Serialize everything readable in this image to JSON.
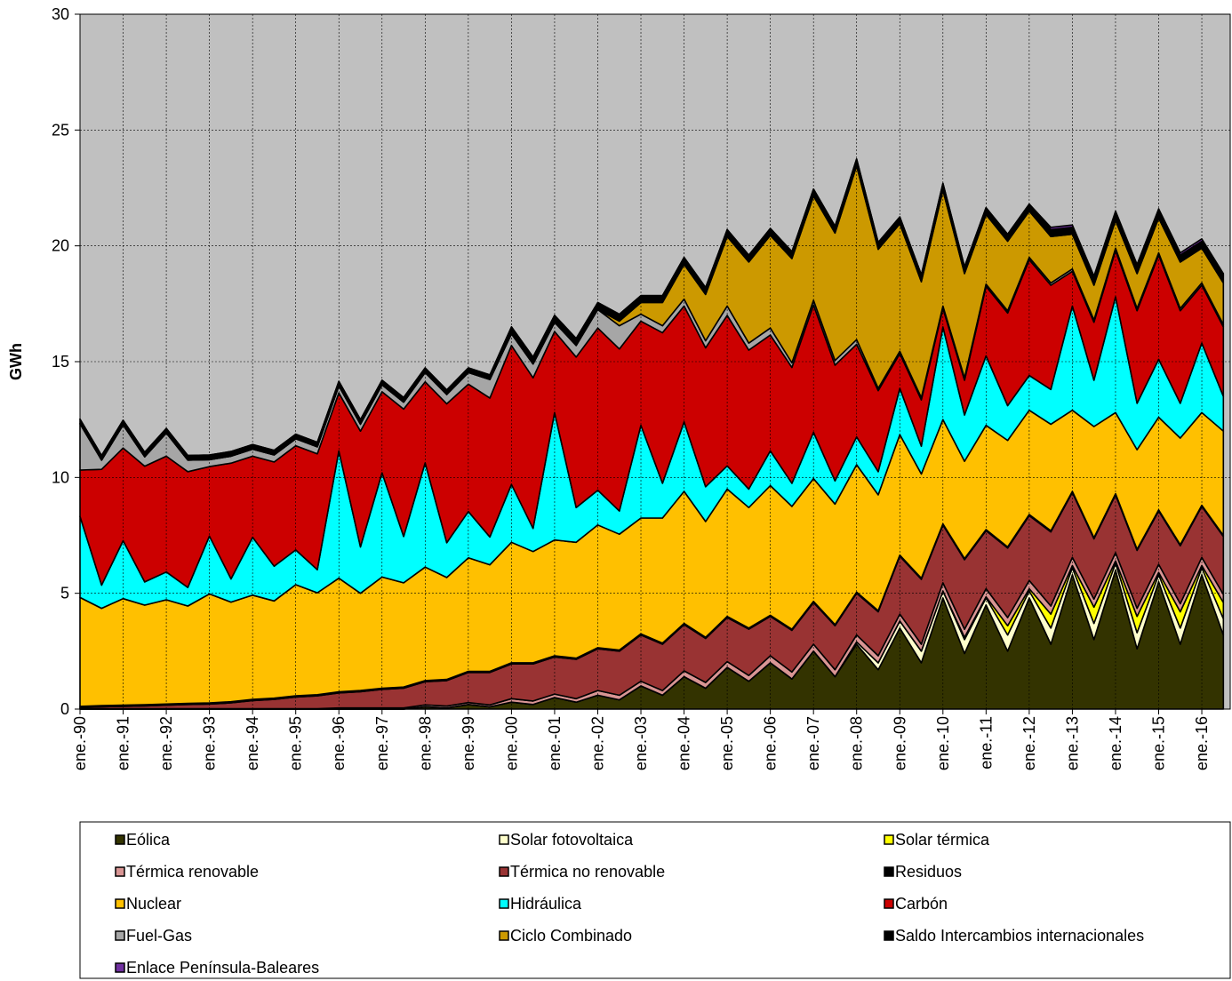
{
  "chart_data": {
    "type": "stacked_area",
    "ylabel": "GWh",
    "ylim": [
      0,
      30
    ],
    "yticks": [
      0,
      5,
      10,
      15,
      20,
      25,
      30
    ],
    "grid": true,
    "categories": [
      "ene.-90",
      null,
      "ene.-91",
      null,
      "ene.-92",
      null,
      "ene.-93",
      null,
      "ene.-94",
      null,
      "ene.-95",
      null,
      "ene.-96",
      null,
      "ene.-97",
      null,
      "ene.-98",
      null,
      "ene.-99",
      null,
      "ene.-00",
      null,
      "ene.-01",
      null,
      "ene.-02",
      null,
      "ene.-03",
      null,
      "ene.-04",
      null,
      "ene.-05",
      null,
      "ene.-06",
      null,
      "ene.-07",
      null,
      "ene.-08",
      null,
      "ene.-09",
      null,
      "ene.-10",
      null,
      "ene.-11",
      null,
      "ene.-12",
      null,
      "ene.-13",
      null,
      "ene.-14",
      null,
      "ene.-15",
      null,
      "ene.-16",
      null
    ],
    "series": [
      {
        "name": "Eólica",
        "color": "#333300",
        "values": [
          0,
          0,
          0,
          0,
          0,
          0,
          0,
          0,
          0,
          0,
          0,
          0,
          0,
          0,
          0,
          0,
          0.1,
          0.05,
          0.2,
          0.1,
          0.3,
          0.2,
          0.5,
          0.3,
          0.6,
          0.4,
          1.0,
          0.6,
          1.4,
          0.9,
          1.8,
          1.2,
          2.0,
          1.3,
          2.5,
          1.4,
          2.8,
          1.7,
          3.5,
          2.0,
          4.8,
          2.4,
          4.5,
          2.5,
          4.8,
          2.8,
          5.8,
          3.0,
          6.0,
          2.6,
          5.5,
          2.8,
          5.8,
          3.2
        ]
      },
      {
        "name": "Solar fotovoltaica",
        "color": "#ffffcc",
        "values": [
          0,
          0,
          0,
          0,
          0,
          0,
          0,
          0,
          0,
          0,
          0,
          0,
          0,
          0,
          0,
          0,
          0,
          0,
          0,
          0,
          0,
          0,
          0,
          0,
          0,
          0,
          0,
          0,
          0,
          0,
          0,
          0,
          0,
          0,
          0,
          0,
          0.1,
          0.3,
          0.3,
          0.5,
          0.3,
          0.6,
          0.3,
          0.7,
          0.3,
          0.7,
          0.3,
          0.7,
          0.3,
          0.7,
          0.3,
          0.7,
          0.3,
          0.7
        ]
      },
      {
        "name": "Solar térmica",
        "color": "#ffff00",
        "values": [
          0,
          0,
          0,
          0,
          0,
          0,
          0,
          0,
          0,
          0,
          0,
          0,
          0,
          0,
          0,
          0,
          0,
          0,
          0,
          0,
          0,
          0,
          0,
          0,
          0,
          0,
          0,
          0,
          0,
          0,
          0,
          0,
          0,
          0,
          0,
          0,
          0,
          0,
          0,
          0,
          0,
          0.1,
          0.05,
          0.4,
          0.1,
          0.6,
          0.1,
          0.7,
          0.1,
          0.7,
          0.1,
          0.7,
          0.1,
          0.7
        ]
      },
      {
        "name": "Térmica renovable",
        "color": "#d99594",
        "values": [
          0.02,
          0.02,
          0.02,
          0.02,
          0.02,
          0.02,
          0.02,
          0.02,
          0.02,
          0.02,
          0.02,
          0.02,
          0.05,
          0.05,
          0.05,
          0.05,
          0.08,
          0.08,
          0.08,
          0.08,
          0.15,
          0.15,
          0.15,
          0.15,
          0.2,
          0.2,
          0.2,
          0.2,
          0.25,
          0.25,
          0.25,
          0.25,
          0.3,
          0.3,
          0.3,
          0.3,
          0.3,
          0.3,
          0.3,
          0.3,
          0.35,
          0.35,
          0.35,
          0.35,
          0.35,
          0.35,
          0.35,
          0.35,
          0.35,
          0.35,
          0.35,
          0.35,
          0.35,
          0.35
        ]
      },
      {
        "name": "Térmica no renovable",
        "color": "#993333",
        "values": [
          0.05,
          0.08,
          0.1,
          0.12,
          0.15,
          0.18,
          0.2,
          0.25,
          0.35,
          0.4,
          0.5,
          0.55,
          0.65,
          0.7,
          0.8,
          0.85,
          1.0,
          1.1,
          1.3,
          1.4,
          1.5,
          1.6,
          1.6,
          1.7,
          1.8,
          1.9,
          2.0,
          2.0,
          2.0,
          1.9,
          1.9,
          2.0,
          1.7,
          1.8,
          1.8,
          1.9,
          1.8,
          1.9,
          2.5,
          2.8,
          2.5,
          3.0,
          2.5,
          3.0,
          2.8,
          3.2,
          2.8,
          2.6,
          2.5,
          2.5,
          2.3,
          2.5,
          2.2,
          2.5
        ]
      },
      {
        "name": "Residuos",
        "color": "#000000",
        "values": [
          0.05,
          0.05,
          0.05,
          0.05,
          0.05,
          0.05,
          0.05,
          0.05,
          0.05,
          0.05,
          0.05,
          0.05,
          0.05,
          0.05,
          0.05,
          0.05,
          0.05,
          0.05,
          0.05,
          0.05,
          0.05,
          0.05,
          0.05,
          0.05,
          0.05,
          0.05,
          0.05,
          0.05,
          0.05,
          0.05,
          0.05,
          0.05,
          0.05,
          0.05,
          0.05,
          0.05,
          0.05,
          0.05,
          0.05,
          0.05,
          0.05,
          0.05,
          0.05,
          0.05,
          0.05,
          0.05,
          0.05,
          0.05,
          0.05,
          0.05,
          0.05,
          0.05,
          0.05,
          0.05
        ]
      },
      {
        "name": "Nuclear",
        "color": "#ffc000",
        "values": [
          4.7,
          4.2,
          4.6,
          4.3,
          4.5,
          4.2,
          4.7,
          4.3,
          4.5,
          4.2,
          4.8,
          4.4,
          4.9,
          4.2,
          4.8,
          4.5,
          4.9,
          4.4,
          4.9,
          4.6,
          5.2,
          4.8,
          5.0,
          5.0,
          5.3,
          5.0,
          5.0,
          5.4,
          5.7,
          5.0,
          5.5,
          5.2,
          5.6,
          5.3,
          5.3,
          5.2,
          5.5,
          5.0,
          5.2,
          4.5,
          4.5,
          4.2,
          4.5,
          4.6,
          4.5,
          4.6,
          3.5,
          4.8,
          3.5,
          4.3,
          4.0,
          4.6,
          4.0,
          4.5
        ]
      },
      {
        "name": "Hidráulica",
        "color": "#00ffff",
        "values": [
          3.5,
          1.0,
          2.5,
          1.0,
          1.2,
          0.8,
          2.5,
          1.0,
          2.5,
          1.5,
          1.5,
          1.0,
          5.5,
          2.0,
          4.5,
          2.0,
          4.5,
          1.5,
          2.0,
          1.2,
          2.5,
          1.0,
          5.5,
          1.5,
          1.5,
          1.0,
          4.0,
          1.5,
          3.0,
          1.5,
          1.0,
          0.8,
          1.5,
          1.0,
          2.0,
          1.0,
          1.2,
          1.0,
          2.0,
          1.2,
          4.0,
          2.0,
          3.0,
          1.5,
          1.5,
          1.5,
          4.5,
          2.0,
          5.0,
          2.0,
          2.5,
          1.5,
          3.0,
          1.5
        ]
      },
      {
        "name": "Carbón",
        "color": "#cc0000",
        "values": [
          2.0,
          5.0,
          4.0,
          5.0,
          5.0,
          5.0,
          3.0,
          5.0,
          3.5,
          4.5,
          4.5,
          5.0,
          2.5,
          5.0,
          3.5,
          5.5,
          3.5,
          6.0,
          5.5,
          6.0,
          6.0,
          6.5,
          3.5,
          6.5,
          7.0,
          7.0,
          4.5,
          6.5,
          5.0,
          6.0,
          6.5,
          6.0,
          5.0,
          5.0,
          5.5,
          5.0,
          4.0,
          3.5,
          1.5,
          2.0,
          0.8,
          1.5,
          3.0,
          4.0,
          5.0,
          4.5,
          1.5,
          2.5,
          2.0,
          4.0,
          4.5,
          4.0,
          2.5,
          3.0
        ]
      },
      {
        "name": "Fuel-Gas",
        "color": "#a6a6a6",
        "values": [
          2.0,
          0.4,
          1.0,
          0.4,
          1.0,
          0.5,
          0.3,
          0.3,
          0.3,
          0.3,
          0.3,
          0.3,
          0.3,
          0.3,
          0.3,
          0.3,
          0.4,
          0.4,
          0.5,
          0.8,
          0.5,
          0.6,
          0.4,
          0.5,
          0.8,
          1.0,
          0.3,
          0.3,
          0.3,
          0.3,
          0.4,
          0.3,
          0.3,
          0.2,
          0.2,
          0.2,
          0.2,
          0.1,
          0.1,
          0.1,
          0.1,
          0.1,
          0.1,
          0.1,
          0.1,
          0.1,
          0.1,
          0.1,
          0.1,
          0.1,
          0.1,
          0.1,
          0.1,
          0.1
        ]
      },
      {
        "name": "Ciclo Combinado",
        "color": "#cc9900",
        "values": [
          0,
          0,
          0,
          0,
          0,
          0,
          0,
          0,
          0,
          0,
          0,
          0,
          0,
          0,
          0,
          0,
          0,
          0,
          0,
          0,
          0,
          0,
          0,
          0,
          0,
          0.2,
          0.5,
          1.0,
          1.5,
          2.0,
          3.0,
          3.5,
          4.0,
          4.5,
          4.5,
          5.5,
          7.5,
          6.0,
          5.5,
          5.0,
          5.0,
          4.5,
          3.0,
          3.0,
          2.0,
          2.0,
          1.5,
          1.5,
          1.2,
          1.5,
          1.5,
          2.0,
          1.5,
          1.8
        ]
      },
      {
        "name": "Saldo Intercambios internacionales",
        "color": "#000000",
        "values": [
          0.2,
          0.2,
          0.2,
          0.2,
          0.2,
          0.2,
          0.2,
          0.2,
          0.2,
          0.2,
          0.2,
          0.2,
          0.2,
          0.2,
          0.2,
          0.2,
          0.2,
          0.2,
          0.2,
          0.2,
          0.3,
          0.3,
          0.3,
          0.3,
          0.3,
          0.3,
          0.3,
          0.3,
          0.3,
          0.3,
          0.3,
          0.3,
          0.3,
          0.3,
          0.3,
          0.3,
          0.3,
          0.3,
          0.3,
          0.3,
          0.3,
          0.3,
          0.3,
          0.3,
          0.3,
          0.3,
          0.3,
          0.3,
          0.3,
          0.3,
          0.3,
          0.3,
          0.3,
          0.3
        ]
      },
      {
        "name": "Enlace Península-Baleares",
        "color": "#7030a0",
        "values": [
          0,
          0,
          0,
          0,
          0,
          0,
          0,
          0,
          0,
          0,
          0,
          0,
          0,
          0,
          0,
          0,
          0,
          0,
          0,
          0,
          0,
          0,
          0,
          0,
          0,
          0,
          0,
          0,
          0,
          0,
          0,
          0,
          0,
          0,
          0,
          0,
          0,
          0,
          0,
          0,
          0,
          0,
          0,
          0,
          0,
          0.1,
          0.1,
          0.1,
          0.1,
          0.1,
          0.1,
          0.1,
          0.1,
          0.1
        ]
      }
    ]
  }
}
